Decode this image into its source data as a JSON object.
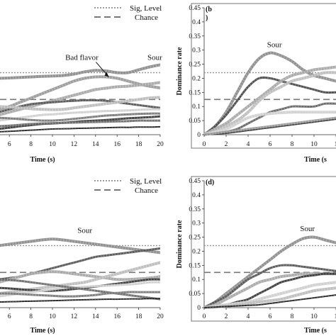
{
  "legend": {
    "sig_label": "Sig, Level",
    "chance_label": "Chance"
  },
  "chart_data": [
    {
      "panel": "a",
      "type": "line",
      "panel_label": "",
      "xlabel": "Time (s)",
      "ylabel": "",
      "x_ticks": [
        "6",
        "8",
        "10",
        "12",
        "14",
        "16",
        "18",
        "20"
      ],
      "x_values": [
        5,
        6,
        7,
        8,
        9,
        10,
        11,
        12,
        13,
        14,
        15,
        16,
        17,
        18,
        19,
        20
      ],
      "xlim": [
        5,
        20
      ],
      "ylim": [
        0,
        0.45
      ],
      "sig_level": 0.22,
      "chance": 0.125,
      "annotations": [
        {
          "text": "Bad flavor",
          "x": 14.7,
          "y": 0.235
        },
        {
          "text": "Sour",
          "x": 19.5,
          "y": 0.255
        }
      ],
      "series": [
        {
          "color": "#8c8c8c",
          "width": 4,
          "values": [
            0.2,
            0.201,
            0.203,
            0.205,
            0.207,
            0.208,
            0.21,
            0.215,
            0.223,
            0.228,
            0.226,
            0.22,
            0.22,
            0.23,
            0.24,
            0.248
          ]
        },
        {
          "color": "#9a9a9a",
          "width": 4,
          "values": [
            0.09,
            0.1,
            0.115,
            0.13,
            0.145,
            0.16,
            0.175,
            0.19,
            0.2,
            0.205,
            0.205,
            0.2,
            0.19,
            0.18,
            0.172,
            0.166
          ]
        },
        {
          "color": "#a8a8a8",
          "width": 4,
          "values": [
            0.07,
            0.08,
            0.09,
            0.1,
            0.11,
            0.12,
            0.13,
            0.14,
            0.15,
            0.16,
            0.165,
            0.17,
            0.172,
            0.176,
            0.18,
            0.185
          ]
        },
        {
          "color": "#555555",
          "width": 3,
          "values": [
            0.08,
            0.09,
            0.1,
            0.108,
            0.112,
            0.115,
            0.118,
            0.12,
            0.122,
            0.122,
            0.12,
            0.115,
            0.11,
            0.105,
            0.1,
            0.095
          ]
        },
        {
          "color": "#bdbdbd",
          "width": 4,
          "values": [
            0.1,
            0.098,
            0.095,
            0.092,
            0.09,
            0.089,
            0.09,
            0.095,
            0.1,
            0.105,
            0.11,
            0.115,
            0.12,
            0.125,
            0.13,
            0.132
          ]
        },
        {
          "color": "#cfcfcf",
          "width": 3,
          "values": [
            0.05,
            0.055,
            0.06,
            0.065,
            0.07,
            0.072,
            0.075,
            0.078,
            0.08,
            0.082,
            0.084,
            0.085,
            0.086,
            0.088,
            0.09,
            0.09
          ]
        },
        {
          "color": "#3a3a3a",
          "width": 3,
          "values": [
            0.02,
            0.025,
            0.03,
            0.034,
            0.038,
            0.04,
            0.042,
            0.045,
            0.048,
            0.05,
            0.052,
            0.055,
            0.058,
            0.06,
            0.062,
            0.065
          ]
        },
        {
          "color": "#6e6e6e",
          "width": 3,
          "values": [
            0.03,
            0.032,
            0.035,
            0.038,
            0.04,
            0.041,
            0.042,
            0.043,
            0.044,
            0.045,
            0.046,
            0.047,
            0.048,
            0.05,
            0.05,
            0.05
          ]
        },
        {
          "color": "#222222",
          "width": 2,
          "values": [
            0.01,
            0.012,
            0.014,
            0.016,
            0.018,
            0.02,
            0.021,
            0.022,
            0.023,
            0.024,
            0.025,
            0.026,
            0.026,
            0.027,
            0.027,
            0.028
          ]
        },
        {
          "color": "#7a7a7a",
          "width": 3,
          "values": [
            0.06,
            0.058,
            0.055,
            0.052,
            0.05,
            0.05,
            0.052,
            0.056,
            0.06,
            0.064,
            0.068,
            0.07,
            0.072,
            0.074,
            0.075,
            0.075
          ]
        }
      ]
    },
    {
      "panel": "b",
      "type": "line",
      "panel_label": "(b\n)",
      "xlabel": "Time (s",
      "ylabel": "Dominance rate",
      "x_ticks": [
        "0",
        "2",
        "4",
        "6",
        "8",
        "10",
        "1"
      ],
      "y_ticks": [
        "0",
        "0.05",
        "0.1",
        "0.15",
        "0.2",
        "0.25",
        "0.3",
        "0.35",
        "0.4",
        "0.45"
      ],
      "x_values": [
        0,
        1,
        2,
        3,
        4,
        5,
        6,
        7,
        8,
        9,
        10,
        11,
        12
      ],
      "xlim": [
        0,
        12
      ],
      "ylim": [
        0,
        0.45
      ],
      "sig_level": 0.22,
      "chance": 0.125,
      "annotations": [
        {
          "text": "Sour",
          "x": 6.4,
          "y": 0.3
        }
      ],
      "series": [
        {
          "color": "#8c8c8c",
          "width": 4,
          "values": [
            0,
            0.03,
            0.08,
            0.15,
            0.22,
            0.27,
            0.29,
            0.28,
            0.26,
            0.23,
            0.21,
            0.2,
            0.19
          ]
        },
        {
          "color": "#4a4a4a",
          "width": 3,
          "values": [
            0,
            0.03,
            0.07,
            0.12,
            0.17,
            0.2,
            0.2,
            0.19,
            0.18,
            0.17,
            0.16,
            0.15,
            0.15
          ]
        },
        {
          "color": "#a8a8a8",
          "width": 4,
          "values": [
            0,
            0.02,
            0.04,
            0.07,
            0.1,
            0.13,
            0.16,
            0.19,
            0.21,
            0.22,
            0.23,
            0.235,
            0.24
          ]
        },
        {
          "color": "#bdbdbd",
          "width": 4,
          "values": [
            0,
            0.01,
            0.03,
            0.05,
            0.08,
            0.12,
            0.15,
            0.17,
            0.19,
            0.2,
            0.21,
            0.22,
            0.22
          ]
        },
        {
          "color": "#666666",
          "width": 3,
          "values": [
            0,
            0.005,
            0.01,
            0.02,
            0.04,
            0.06,
            0.08,
            0.09,
            0.1,
            0.1,
            0.1,
            0.11,
            0.11
          ]
        },
        {
          "color": "#d0d0d0",
          "width": 4,
          "values": [
            0,
            0.01,
            0.02,
            0.04,
            0.06,
            0.07,
            0.075,
            0.078,
            0.08,
            0.08,
            0.08,
            0.08,
            0.08
          ]
        },
        {
          "color": "#2f2f2f",
          "width": 2,
          "values": [
            0,
            0.002,
            0.005,
            0.01,
            0.015,
            0.02,
            0.025,
            0.03,
            0.035,
            0.04,
            0.045,
            0.05,
            0.055
          ]
        },
        {
          "color": "#999999",
          "width": 3,
          "values": [
            0,
            0.005,
            0.01,
            0.015,
            0.02,
            0.025,
            0.03,
            0.035,
            0.04,
            0.045,
            0.05,
            0.055,
            0.06
          ]
        }
      ]
    },
    {
      "panel": "c",
      "type": "line",
      "panel_label": "",
      "xlabel": "Time (s)",
      "ylabel": "",
      "x_ticks": [
        "6",
        "8",
        "10",
        "12",
        "14",
        "16",
        "18",
        "20"
      ],
      "x_values": [
        5,
        6,
        7,
        8,
        9,
        10,
        11,
        12,
        13,
        14,
        15,
        16,
        17,
        18,
        19,
        20
      ],
      "xlim": [
        5,
        20
      ],
      "ylim": [
        0,
        0.45
      ],
      "sig_level": 0.22,
      "chance": 0.125,
      "annotations": [
        {
          "text": "Sour",
          "x": 13,
          "y": 0.255
        }
      ],
      "series": [
        {
          "color": "#8c8c8c",
          "width": 4,
          "values": [
            0.22,
            0.225,
            0.23,
            0.235,
            0.24,
            0.243,
            0.24,
            0.235,
            0.23,
            0.225,
            0.22,
            0.215,
            0.21,
            0.205,
            0.2,
            0.195
          ]
        },
        {
          "color": "#555555",
          "width": 3,
          "values": [
            0.1,
            0.105,
            0.11,
            0.12,
            0.13,
            0.14,
            0.15,
            0.16,
            0.17,
            0.18,
            0.185,
            0.19,
            0.195,
            0.2,
            0.205,
            0.21
          ]
        },
        {
          "color": "#a8a8a8",
          "width": 4,
          "values": [
            0.09,
            0.1,
            0.11,
            0.12,
            0.125,
            0.128,
            0.125,
            0.12,
            0.115,
            0.11,
            0.105,
            0.1,
            0.1,
            0.102,
            0.105,
            0.11
          ]
        },
        {
          "color": "#bdbdbd",
          "width": 4,
          "values": [
            0.05,
            0.055,
            0.06,
            0.065,
            0.07,
            0.075,
            0.08,
            0.085,
            0.09,
            0.1,
            0.11,
            0.12,
            0.13,
            0.14,
            0.15,
            0.16
          ]
        },
        {
          "color": "#3a3a3a",
          "width": 3,
          "values": [
            0.07,
            0.068,
            0.065,
            0.062,
            0.06,
            0.06,
            0.062,
            0.066,
            0.07,
            0.075,
            0.08,
            0.085,
            0.09,
            0.095,
            0.1,
            0.1
          ]
        },
        {
          "color": "#cfcfcf",
          "width": 3,
          "values": [
            0.04,
            0.045,
            0.05,
            0.055,
            0.06,
            0.065,
            0.07,
            0.072,
            0.074,
            0.076,
            0.078,
            0.08,
            0.082,
            0.085,
            0.09,
            0.09
          ]
        },
        {
          "color": "#6e6e6e",
          "width": 3,
          "values": [
            0.1,
            0.098,
            0.095,
            0.09,
            0.085,
            0.08,
            0.075,
            0.07,
            0.065,
            0.06,
            0.055,
            0.05,
            0.045,
            0.04,
            0.035,
            0.03
          ]
        },
        {
          "color": "#222222",
          "width": 2,
          "values": [
            0.02,
            0.021,
            0.022,
            0.023,
            0.024,
            0.025,
            0.026,
            0.027,
            0.028,
            0.029,
            0.03,
            0.03,
            0.031,
            0.031,
            0.032,
            0.032
          ]
        },
        {
          "color": "#7a7a7a",
          "width": 3,
          "values": [
            0.05,
            0.05,
            0.048,
            0.046,
            0.044,
            0.042,
            0.04,
            0.04,
            0.042,
            0.045,
            0.05,
            0.052,
            0.055,
            0.055,
            0.055,
            0.055
          ]
        }
      ]
    },
    {
      "panel": "d",
      "type": "line",
      "panel_label": "(d)",
      "xlabel": "Time (s",
      "ylabel": "Dominance rate",
      "x_ticks": [
        "0",
        "2",
        "4",
        "6",
        "8",
        "10",
        "1"
      ],
      "y_ticks": [
        "0",
        "0.05",
        "0.1",
        "0.15",
        "0.2",
        "0.25",
        "0.3",
        "0.35",
        "0.4",
        "0.45"
      ],
      "x_values": [
        0,
        1,
        2,
        3,
        4,
        5,
        6,
        7,
        8,
        9,
        10,
        11,
        12
      ],
      "xlim": [
        0,
        12
      ],
      "ylim": [
        0,
        0.45
      ],
      "sig_level": 0.22,
      "chance": 0.125,
      "annotations": [
        {
          "text": "Sour",
          "x": 9.4,
          "y": 0.262
        }
      ],
      "series": [
        {
          "color": "#8c8c8c",
          "width": 4,
          "values": [
            0,
            0.02,
            0.05,
            0.08,
            0.11,
            0.14,
            0.17,
            0.2,
            0.225,
            0.245,
            0.25,
            0.24,
            0.23
          ]
        },
        {
          "color": "#555555",
          "width": 3,
          "values": [
            0,
            0.02,
            0.04,
            0.07,
            0.1,
            0.12,
            0.14,
            0.15,
            0.15,
            0.145,
            0.14,
            0.135,
            0.13
          ]
        },
        {
          "color": "#a8a8a8",
          "width": 4,
          "values": [
            0,
            0.01,
            0.03,
            0.05,
            0.07,
            0.09,
            0.1,
            0.11,
            0.115,
            0.12,
            0.12,
            0.12,
            0.12
          ]
        },
        {
          "color": "#3a3a3a",
          "width": 3,
          "values": [
            0,
            0.005,
            0.01,
            0.02,
            0.03,
            0.05,
            0.07,
            0.09,
            0.1,
            0.11,
            0.115,
            0.12,
            0.12
          ]
        },
        {
          "color": "#cfcfcf",
          "width": 4,
          "values": [
            0,
            0.005,
            0.01,
            0.015,
            0.02,
            0.03,
            0.04,
            0.05,
            0.06,
            0.07,
            0.08,
            0.085,
            0.09
          ]
        },
        {
          "color": "#bdbdbd",
          "width": 4,
          "values": [
            0,
            0.002,
            0.005,
            0.01,
            0.015,
            0.02,
            0.025,
            0.03,
            0.04,
            0.05,
            0.06,
            0.065,
            0.07
          ]
        },
        {
          "color": "#222222",
          "width": 2,
          "values": [
            0,
            0.002,
            0.004,
            0.006,
            0.008,
            0.01,
            0.015,
            0.02,
            0.025,
            0.03,
            0.035,
            0.04,
            0.045
          ]
        }
      ]
    }
  ]
}
